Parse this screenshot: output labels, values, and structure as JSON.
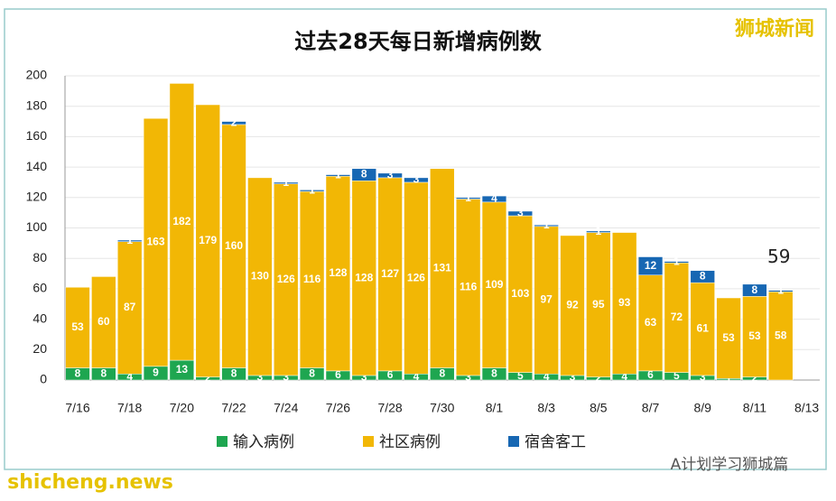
{
  "chart_data": {
    "type": "stacked_bar",
    "title": "过去28天每日新增病例数",
    "categories": [
      "7/16",
      null,
      "7/18",
      null,
      "7/20",
      null,
      "7/22",
      null,
      "7/24",
      null,
      "7/26",
      null,
      "7/28",
      null,
      "7/30",
      null,
      "8/1",
      null,
      "8/3",
      null,
      "8/5",
      null,
      "8/7",
      null,
      "8/9",
      null,
      "8/11",
      null,
      "8/13"
    ],
    "series": [
      {
        "name": "输入病例",
        "color": "#1ea650",
        "values": [
          8,
          8,
          4,
          9,
          13,
          2,
          8,
          3,
          3,
          8,
          6,
          3,
          6,
          4,
          8,
          3,
          8,
          5,
          4,
          3,
          2,
          4,
          6,
          5,
          3,
          1,
          2,
          0,
          null
        ]
      },
      {
        "name": "社区病例",
        "color": "#f2b705",
        "values": [
          53,
          60,
          87,
          163,
          182,
          179,
          160,
          130,
          126,
          116,
          128,
          128,
          127,
          126,
          131,
          116,
          109,
          103,
          97,
          92,
          95,
          93,
          63,
          72,
          61,
          53,
          53,
          58,
          null
        ]
      },
      {
        "name": "宿舍客工",
        "color": "#1767b3",
        "values": [
          0,
          0,
          1,
          0,
          0,
          0,
          2,
          0,
          1,
          1,
          1,
          8,
          3,
          3,
          0,
          1,
          4,
          3,
          1,
          0,
          1,
          0,
          12,
          1,
          8,
          0,
          8,
          1,
          null
        ]
      }
    ],
    "ylim": [
      0,
      200
    ],
    "yticks": [
      0,
      20,
      40,
      60,
      80,
      100,
      120,
      140,
      160,
      180,
      200
    ],
    "grid": true,
    "annotation": "59",
    "watermarks": [
      "狮城新闻",
      "A计划学习狮城篇",
      "shicheng.news"
    ]
  }
}
